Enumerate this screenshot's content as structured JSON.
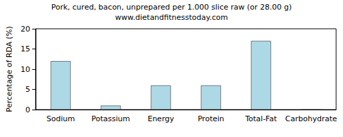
{
  "chart_data": {
    "type": "bar",
    "title": "Pork, cured, bacon, unprepared per 1.000 slice raw (or 28.00 g)",
    "subtitle": "www.dietandfitnesstoday.com",
    "y_label": "Percentage of RDA (%)",
    "categories": [
      "Sodium",
      "Potassium",
      "Energy",
      "Protein",
      "Total-Fat",
      "Carbohydrate"
    ],
    "values": [
      12,
      1,
      6,
      6,
      17,
      0
    ],
    "color": "#add8e6",
    "ylim": [
      0,
      20
    ],
    "yticks": [
      0,
      5,
      10,
      15,
      20
    ],
    "grid": false
  }
}
